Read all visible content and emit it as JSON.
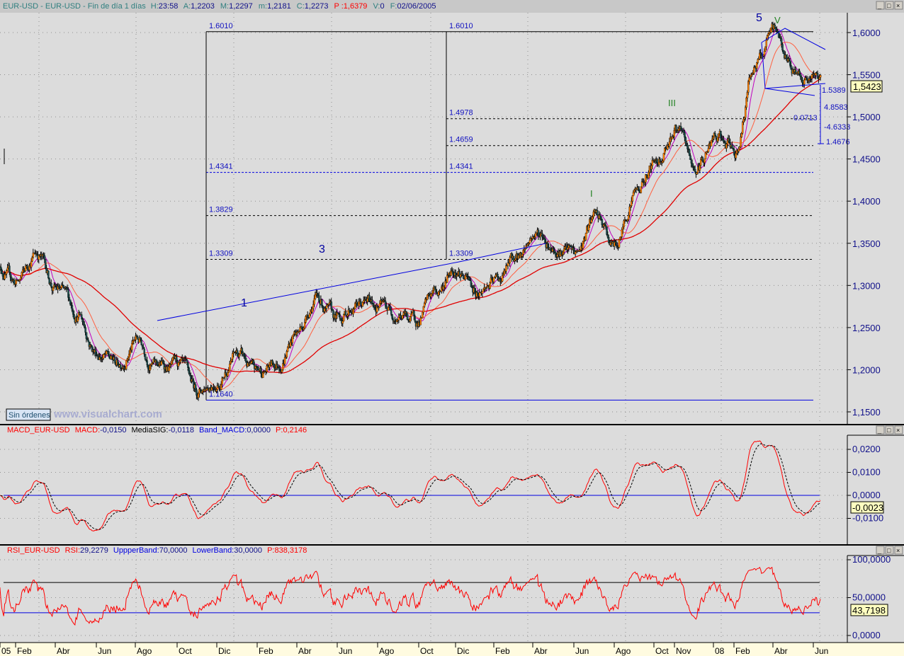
{
  "header": {
    "symbol": "EUR-USD - EUR-USD - Fin de día 1 días",
    "h_label": "H:",
    "h_value": "23:58",
    "a_label": "A:",
    "a_value": "1,2203",
    "m_label": "M:",
    "m_value": "1,2297",
    "mlow_label": "m:",
    "mlow_value": "1,2181",
    "c_label": "C:",
    "c_value": "1,2273",
    "p_label": "P :",
    "p_value": "1,6379",
    "v_label": "V:",
    "v_value": "0",
    "f_label": "F:",
    "f_value": "02/06/2005"
  },
  "price_axis": {
    "ticks": [
      "1,6000",
      "1,5500",
      "1,5000",
      "1,4500",
      "1,4000",
      "1,3500",
      "1,3000",
      "1,2500",
      "1,2000",
      "1,1500"
    ],
    "last_value": "1,5423"
  },
  "annotations": {
    "fib_levels": [
      "1.6010",
      "1.4978",
      "1.4659",
      "1.4341",
      "1.3829",
      "1.3309",
      "1.1640"
    ],
    "fib_left_labels": [
      "1.6010",
      "1.4341",
      "1.3829",
      "1.3309",
      "1.1640"
    ],
    "fib_right_labels": [
      "1.6010",
      "1.4978",
      "1.4659",
      "1.4341",
      "1.3309"
    ],
    "waves": [
      "1",
      "3",
      "5",
      "I",
      "III",
      "V"
    ],
    "measure": [
      "1.5389",
      "4.8583",
      "0.0713",
      "-4.6333",
      "1.4676"
    ]
  },
  "status": {
    "orders": "Sin órdenes",
    "watermark": "www.visualchart.com"
  },
  "macd": {
    "name": "MACD_EUR-USD",
    "macd_label": "MACD:",
    "macd_value": "-0,0150",
    "sig_label": "MediaSIG:",
    "sig_value": "-0,0118",
    "band_label": "Band_MACD:",
    "band_value": "0,0000",
    "p_label": "P:",
    "p_value": "0,2146",
    "ticks": [
      "0,0200",
      "0,0100",
      "0,0000",
      "-0,0100"
    ],
    "last_value": "-0,0023"
  },
  "rsi": {
    "name": "RSI_EUR-USD",
    "rsi_label": "RSI:",
    "rsi_value": "29,2279",
    "upper_label": "UppperBand:",
    "upper_value": "70,0000",
    "lower_label": "LowerBand:",
    "lower_value": "30,0000",
    "p_label": "P:",
    "p_value": "838,3178",
    "ticks": [
      "100,0000",
      "50,0000",
      "0,0000"
    ],
    "last_value": "43,7198"
  },
  "time_axis": [
    "05",
    "Feb",
    "Abr",
    "Jun",
    "Ago",
    "Oct",
    "Dic",
    "Feb",
    "Abr",
    "Jun",
    "Ago",
    "Oct",
    "Dic",
    "Feb",
    "Abr",
    "Jun",
    "Ago",
    "Oct",
    "Nov",
    "08",
    "Feb",
    "Abr",
    "Jun"
  ],
  "colors": {
    "up_body": "#ff8000",
    "down_body": "#1f4f4f",
    "ma_fast": "#c000c0",
    "ma_mid": "#ff6040",
    "ma_slow": "#e00000",
    "fib": "#0000e0",
    "macd": "#ff0000",
    "rsi": "#ff0000",
    "band": "#0000e0"
  },
  "chart_data": {
    "type": "candlestick",
    "title": "EUR-USD",
    "frequency": "daily",
    "approx_monthly_close": {
      "months": [
        "2005-01",
        "2005-02",
        "2005-03",
        "2005-04",
        "2005-05",
        "2005-06",
        "2005-07",
        "2005-08",
        "2005-09",
        "2005-10",
        "2005-11",
        "2005-12",
        "2006-01",
        "2006-02",
        "2006-03",
        "2006-04",
        "2006-05",
        "2006-06",
        "2006-07",
        "2006-08",
        "2006-09",
        "2006-10",
        "2006-11",
        "2006-12",
        "2007-01",
        "2007-02",
        "2007-03",
        "2007-04",
        "2007-05",
        "2007-06",
        "2007-07",
        "2007-08",
        "2007-09",
        "2007-10",
        "2007-11",
        "2007-12",
        "2008-01",
        "2008-02",
        "2008-03",
        "2008-04",
        "2008-05",
        "2008-06"
      ],
      "values": [
        1.324,
        1.303,
        1.34,
        1.294,
        1.269,
        1.223,
        1.206,
        1.235,
        1.206,
        1.202,
        1.173,
        1.19,
        1.219,
        1.194,
        1.206,
        1.244,
        1.286,
        1.257,
        1.278,
        1.278,
        1.269,
        1.257,
        1.29,
        1.324,
        1.294,
        1.303,
        1.33,
        1.362,
        1.349,
        1.336,
        1.378,
        1.345,
        1.412,
        1.446,
        1.487,
        1.437,
        1.471,
        1.458,
        1.563,
        1.597,
        1.555,
        1.542
      ]
    },
    "ylim": [
      1.15,
      1.62
    ],
    "indicators": {
      "macd_ylim": [
        -0.016,
        0.026
      ],
      "rsi_ylim": [
        0,
        100
      ],
      "rsi_bands": [
        70,
        30
      ]
    }
  }
}
